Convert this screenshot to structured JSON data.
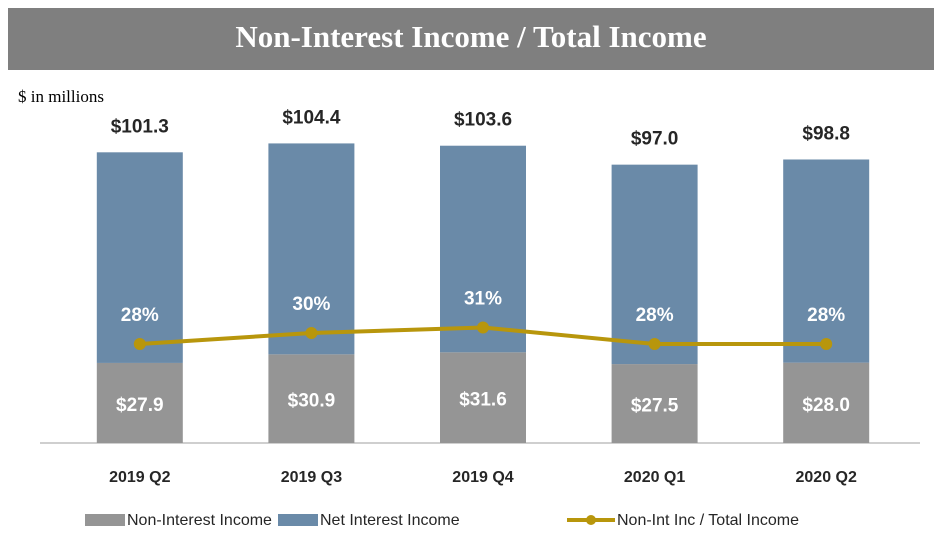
{
  "chart_data": {
    "type": "bar",
    "title": "Non-Interest Income / Total Income",
    "subtitle": "$ in millions",
    "categories": [
      "2019 Q2",
      "2019 Q3",
      "2019 Q4",
      "2020 Q1",
      "2020 Q2"
    ],
    "stacked": true,
    "series": [
      {
        "name": "Non-Interest Income",
        "color": "#959595",
        "values": [
          27.9,
          30.9,
          31.6,
          27.5,
          28.0
        ],
        "value_labels": [
          "$27.9",
          "$30.9",
          "$31.6",
          "$27.5",
          "$28.0"
        ]
      },
      {
        "name": "Net Interest Income",
        "color": "#6a8aa8",
        "values": [
          73.4,
          73.5,
          72.0,
          69.5,
          70.8
        ]
      },
      {
        "name": "Non-Int Inc / Total Income",
        "color": "#b8960c",
        "type": "line",
        "axis": "y2",
        "values": [
          28,
          30,
          31,
          28,
          28
        ],
        "value_labels": [
          "28%",
          "30%",
          "31%",
          "28%",
          "28%"
        ]
      }
    ],
    "totals": [
      101.3,
      104.4,
      103.6,
      97.0,
      98.8
    ],
    "total_labels": [
      "$101.3",
      "$104.4",
      "$103.6",
      "$97.0",
      "$98.8"
    ],
    "ylim": [
      0,
      115
    ],
    "y2lim": [
      10,
      70
    ]
  }
}
